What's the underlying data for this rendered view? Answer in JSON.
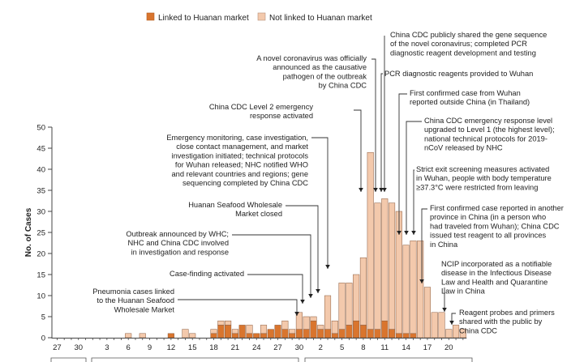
{
  "chart_data": {
    "type": "bar",
    "stacked": true,
    "ylabel": "No. of Cases",
    "ylim": [
      0,
      50
    ],
    "yticks": [
      0,
      5,
      10,
      15,
      20,
      25,
      30,
      35,
      40,
      45,
      50
    ],
    "legend_position": "top-left",
    "series": [
      {
        "name": "Linked to Huanan market",
        "color": "#d9752e"
      },
      {
        "name": "Not linked to Huanan market",
        "color": "#f3c9ac"
      }
    ],
    "dates": [
      "Dec 27",
      "Dec 28",
      "Dec 29",
      "Dec 30",
      "Dec 31",
      "Jan 1",
      "Jan 2",
      "Jan 3",
      "Jan 4",
      "Jan 5",
      "Jan 6",
      "Jan 7",
      "Jan 8",
      "Jan 9",
      "Jan 10",
      "Jan 11",
      "Jan 12",
      "Jan 13",
      "Jan 14",
      "Jan 15",
      "Jan 16",
      "Jan 17",
      "Jan 18",
      "Jan 19",
      "Jan 20",
      "Jan 21",
      "Jan 22",
      "Jan 23",
      "Jan 24",
      "Jan 25",
      "Jan 26",
      "Jan 27",
      "Jan 28",
      "Jan 29",
      "Jan 30",
      "Jan 31",
      "Feb 1",
      "Feb 2",
      "Feb 3",
      "Feb 4",
      "Feb 5",
      "Feb 6",
      "Feb 7",
      "Feb 8",
      "Feb 9",
      "Feb 10",
      "Feb 11",
      "Feb 12",
      "Feb 13",
      "Feb 14",
      "Feb 15",
      "Feb 16",
      "Feb 17",
      "Feb 18",
      "Feb 19",
      "Feb 20",
      "Feb 21",
      "Feb 22"
    ],
    "linked": [
      0,
      0,
      0,
      0,
      0,
      0,
      0,
      0,
      0,
      0,
      0,
      0,
      0,
      0,
      0,
      0,
      1,
      0,
      0,
      0,
      0,
      0,
      1,
      3,
      3,
      1,
      3,
      1,
      1,
      1,
      2,
      3,
      2,
      1,
      2,
      2,
      4,
      2,
      2,
      1,
      2,
      3,
      4,
      3,
      2,
      2,
      4,
      2,
      1,
      1,
      1,
      0,
      0,
      0,
      0,
      0,
      0,
      0
    ],
    "not_linked": [
      0,
      0,
      0,
      0,
      0,
      0,
      0,
      0,
      0,
      0,
      1,
      0,
      1,
      0,
      0,
      0,
      0,
      0,
      2,
      1,
      0,
      0,
      1,
      1,
      1,
      1,
      0,
      2,
      0,
      2,
      0,
      0,
      2,
      1,
      4,
      3,
      1,
      1,
      8,
      3,
      11,
      10,
      11,
      16,
      42,
      30,
      29,
      30,
      29,
      21,
      22,
      23,
      12,
      6,
      6,
      2,
      3,
      2
    ],
    "xtick_labels": [
      "27",
      "30",
      "3",
      "6",
      "9",
      "12",
      "15",
      "18",
      "21",
      "24",
      "27",
      "30",
      "2",
      "5",
      "8",
      "11",
      "14",
      "17",
      "20"
    ],
    "xtick_index": [
      0,
      3,
      7,
      10,
      13,
      16,
      19,
      22,
      25,
      28,
      31,
      34,
      37,
      40,
      43,
      46,
      49,
      52,
      55
    ],
    "annotations": [
      {
        "text": [
          "China CDC publicly shared the gene sequence",
          "of the novel coronavirus; completed PCR",
          "diagnostic reagent development and testing"
        ],
        "target": 45
      },
      {
        "text": [
          "A novel coronavirus was officially",
          "announced as the causative",
          "pathogen of the outbreak",
          "by China CDC"
        ],
        "target": 44
      },
      {
        "text": [
          "PCR diagnostic reagents provided to Wuhan"
        ],
        "target": 46
      },
      {
        "text": [
          "First confirmed case from Wuhan",
          "reported outside China (in Thailand)"
        ],
        "target": 49
      },
      {
        "text": [
          "China CDC Level 2 emergency",
          "response activated"
        ],
        "target": 43
      },
      {
        "text": [
          "China CDC emergency response level",
          "upgraded to Level 1 (the highest level);",
          "national technical protocols for 2019-",
          "nCoV released by NHC"
        ],
        "target": 50
      },
      {
        "text": [
          "Emergency monitoring, case investigation,",
          "close contact management, and market",
          "investigation initiated; technical protocols",
          "for Wuhan released; NHC notified WHO",
          "and relevant countries and regions; gene",
          "sequencing completed by China CDC"
        ],
        "target": 40
      },
      {
        "text": [
          "Strict exit screening measures activated",
          "in Wuhan, people with body temperature",
          "≥37.3°C were restricted from leaving"
        ],
        "target": 51
      },
      {
        "text": [
          "Huanan Seafood Wholesale",
          "Market closed"
        ],
        "target": 39
      },
      {
        "text": [
          "First confirmed case reported in another",
          "province in China (in a person who",
          "had traveled from Wuhan); China CDC",
          "issued test reagent to all provinces",
          "in China"
        ],
        "target": 52
      },
      {
        "text": [
          "Outbreak announced by WHC;",
          "NHC and China CDC involved",
          "in investigation and response"
        ],
        "target": 37
      },
      {
        "text": [
          "Case-finding activated"
        ],
        "target": 36
      },
      {
        "text": [
          "NCIP incorporated as a notifiable",
          "disease in the Infectious Disease",
          "Law and Health and Quarantine",
          "Law in China"
        ],
        "target": 55
      },
      {
        "text": [
          "Pneumonia cases linked",
          "to the Huanan Seafood",
          "Wholesale Market"
        ],
        "target": 35
      },
      {
        "text": [
          "Reagent probes and primers",
          "shared with the public by",
          "China CDC"
        ],
        "target": 56
      }
    ]
  }
}
